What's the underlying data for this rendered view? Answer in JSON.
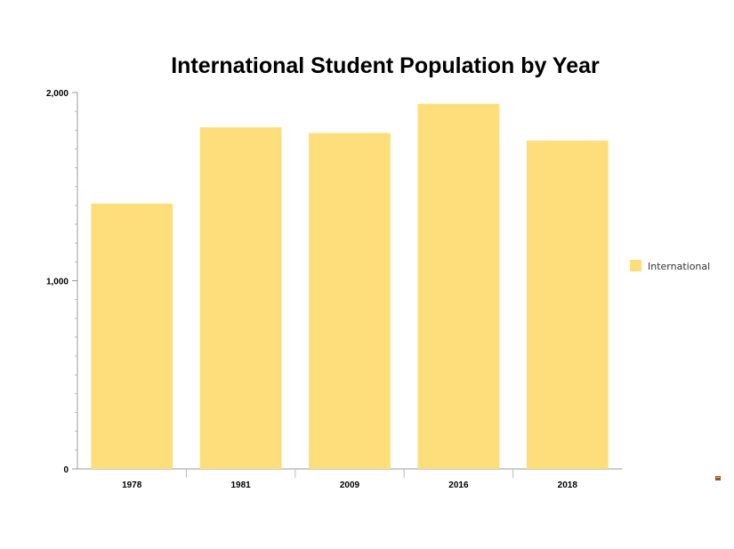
{
  "chart_data": {
    "type": "bar",
    "title": "International Student Population by Year",
    "xlabel": "",
    "ylabel": "",
    "categories": [
      "1978",
      "1981",
      "2009",
      "2016",
      "2018"
    ],
    "series": [
      {
        "name": "International",
        "values": [
          1410,
          1815,
          1785,
          1940,
          1745
        ]
      }
    ],
    "ylim": [
      0,
      2000
    ],
    "yticks": [
      0,
      1000,
      2000
    ],
    "ytick_labels": [
      "0",
      "1,000",
      "2,000"
    ],
    "grid": false,
    "legend_position": "right",
    "colors": {
      "bar": "#fdde7b",
      "axis": "#999999",
      "minor_tick": "#bbbbbb"
    }
  }
}
